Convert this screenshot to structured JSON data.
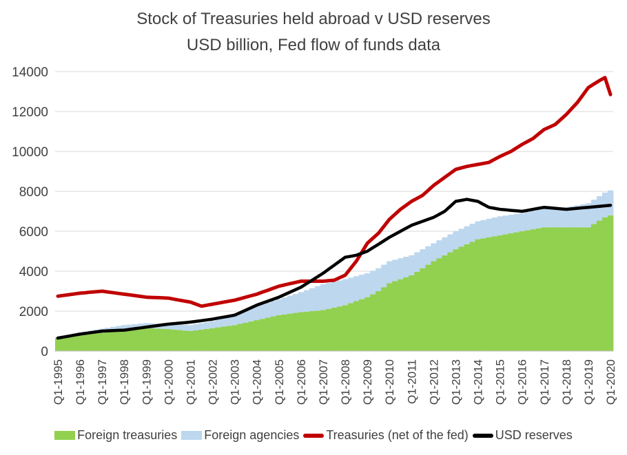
{
  "chart_data": {
    "type": "bar+line",
    "title": "Stock of Treasuries held abroad v USD reserves",
    "subtitle": "USD billion, Fed flow of funds data",
    "xlabel": "",
    "ylabel": "",
    "ylim": [
      0,
      14000
    ],
    "yticks": [
      0,
      2000,
      4000,
      6000,
      8000,
      10000,
      12000,
      14000
    ],
    "x_tick_labels": [
      "Q1-1995",
      "Q1-1996",
      "Q1-1997",
      "Q1-1998",
      "Q1-1999",
      "Q1-2000",
      "Q1-2001",
      "Q1-2002",
      "Q1-2003",
      "Q1-2004",
      "Q1-2005",
      "Q1-2006",
      "Q1-2007",
      "Q1-2008",
      "Q1-2009",
      "Q1-2010",
      "Q1-2011",
      "Q1-2012",
      "Q1-2013",
      "Q1-2014",
      "Q1-2015",
      "Q1-2016",
      "Q1-2017",
      "Q1-2018",
      "Q1-2019",
      "Q1-2020"
    ],
    "n_quarters": 101,
    "anchor_note": "Series values below are quarterly anchor points (quarter index 0 = Q1-1995); values between anchors are linearly interpolated.",
    "series": [
      {
        "name": "Foreign treasuries",
        "kind": "stacked-bar",
        "color": "#92d050",
        "anchors": [
          [
            0,
            650
          ],
          [
            4,
            800
          ],
          [
            8,
            920
          ],
          [
            12,
            1050
          ],
          [
            16,
            1150
          ],
          [
            20,
            1100
          ],
          [
            24,
            1000
          ],
          [
            28,
            1150
          ],
          [
            32,
            1300
          ],
          [
            36,
            1550
          ],
          [
            40,
            1800
          ],
          [
            44,
            1950
          ],
          [
            48,
            2050
          ],
          [
            52,
            2300
          ],
          [
            56,
            2700
          ],
          [
            58,
            3000
          ],
          [
            60,
            3400
          ],
          [
            64,
            3800
          ],
          [
            68,
            4500
          ],
          [
            72,
            5100
          ],
          [
            76,
            5600
          ],
          [
            80,
            5800
          ],
          [
            84,
            6000
          ],
          [
            88,
            6200
          ],
          [
            92,
            6200
          ],
          [
            96,
            6200
          ],
          [
            99,
            6700
          ],
          [
            100,
            6800
          ]
        ]
      },
      {
        "name": "Foreign agencies",
        "kind": "stacked-bar",
        "color": "#bdd7ee",
        "anchors": [
          [
            0,
            50
          ],
          [
            8,
            200
          ],
          [
            12,
            250
          ],
          [
            20,
            250
          ],
          [
            28,
            350
          ],
          [
            32,
            550
          ],
          [
            36,
            700
          ],
          [
            40,
            800
          ],
          [
            44,
            1000
          ],
          [
            48,
            1300
          ],
          [
            52,
            1300
          ],
          [
            56,
            1200
          ],
          [
            60,
            1100
          ],
          [
            64,
            1000
          ],
          [
            68,
            900
          ],
          [
            72,
            900
          ],
          [
            76,
            900
          ],
          [
            80,
            950
          ],
          [
            84,
            900
          ],
          [
            88,
            950
          ],
          [
            92,
            1000
          ],
          [
            96,
            1200
          ],
          [
            100,
            1250
          ]
        ]
      },
      {
        "name": "Treasuries (net of the fed)",
        "kind": "line",
        "color": "#c00000",
        "anchors": [
          [
            0,
            2750
          ],
          [
            4,
            2900
          ],
          [
            8,
            3000
          ],
          [
            12,
            2850
          ],
          [
            16,
            2700
          ],
          [
            20,
            2650
          ],
          [
            24,
            2450
          ],
          [
            26,
            2250
          ],
          [
            28,
            2350
          ],
          [
            32,
            2550
          ],
          [
            36,
            2850
          ],
          [
            40,
            3250
          ],
          [
            44,
            3500
          ],
          [
            48,
            3500
          ],
          [
            50,
            3550
          ],
          [
            52,
            3800
          ],
          [
            54,
            4500
          ],
          [
            56,
            5400
          ],
          [
            58,
            5900
          ],
          [
            60,
            6600
          ],
          [
            62,
            7100
          ],
          [
            64,
            7500
          ],
          [
            66,
            7800
          ],
          [
            68,
            8300
          ],
          [
            70,
            8700
          ],
          [
            72,
            9100
          ],
          [
            74,
            9250
          ],
          [
            76,
            9350
          ],
          [
            78,
            9450
          ],
          [
            80,
            9750
          ],
          [
            82,
            10000
          ],
          [
            84,
            10350
          ],
          [
            86,
            10650
          ],
          [
            88,
            11100
          ],
          [
            90,
            11350
          ],
          [
            92,
            11850
          ],
          [
            94,
            12450
          ],
          [
            96,
            13200
          ],
          [
            98,
            13550
          ],
          [
            99,
            13700
          ],
          [
            100,
            12850
          ]
        ]
      },
      {
        "name": "USD reserves",
        "kind": "line",
        "color": "#000000",
        "anchors": [
          [
            0,
            650
          ],
          [
            4,
            850
          ],
          [
            8,
            1000
          ],
          [
            12,
            1050
          ],
          [
            16,
            1200
          ],
          [
            20,
            1350
          ],
          [
            24,
            1450
          ],
          [
            28,
            1600
          ],
          [
            32,
            1800
          ],
          [
            36,
            2300
          ],
          [
            40,
            2700
          ],
          [
            44,
            3200
          ],
          [
            48,
            3900
          ],
          [
            52,
            4700
          ],
          [
            54,
            4800
          ],
          [
            56,
            5000
          ],
          [
            60,
            5700
          ],
          [
            64,
            6300
          ],
          [
            68,
            6700
          ],
          [
            70,
            7000
          ],
          [
            72,
            7500
          ],
          [
            74,
            7600
          ],
          [
            76,
            7500
          ],
          [
            78,
            7200
          ],
          [
            80,
            7100
          ],
          [
            84,
            7000
          ],
          [
            88,
            7200
          ],
          [
            92,
            7100
          ],
          [
            96,
            7200
          ],
          [
            100,
            7300
          ]
        ]
      }
    ],
    "legend": [
      "Foreign treasuries",
      "Foreign agencies",
      "Treasuries (net of the fed)",
      "USD reserves"
    ],
    "legend_position": "bottom",
    "grid": "horizontal"
  }
}
